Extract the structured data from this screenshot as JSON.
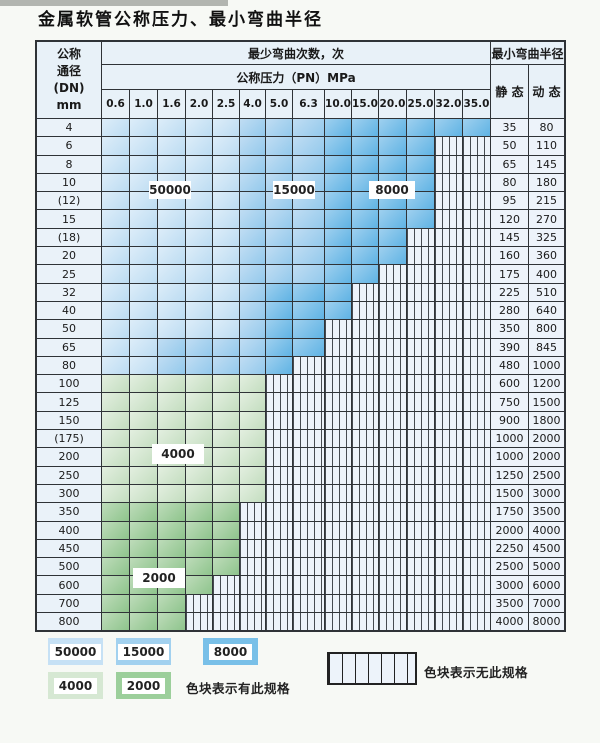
{
  "title": "金属软管公称压力、最小弯曲半径",
  "table": {
    "header": {
      "dn_lines": [
        "公称",
        "通径",
        "(DN)",
        "mm"
      ],
      "bend_cycles": "最少弯曲次数，次",
      "pressure": "公称压力（PN）MPa",
      "radius": "最小弯曲半径",
      "static": "静 态",
      "dynamic": "动 态",
      "pressure_columns": [
        "0.6",
        "1.0",
        "1.6",
        "2.0",
        "2.5",
        "4.0",
        "5.0",
        "6.3",
        "10.0",
        "15.0",
        "20.0",
        "25.0",
        "32.0",
        "35.0"
      ]
    },
    "cell_codes": {
      "L": "50000 cycles (light blue)",
      "M": "15000 cycles (medium blue)",
      "D": "8000 cycles (dark blue)",
      "G4": "4000 cycles (light green)",
      "G2": "2000 cycles (medium green)",
      "N": "no such specification (hatched)"
    },
    "rows": [
      {
        "dn": "4",
        "cells": [
          "L",
          "L",
          "L",
          "L",
          "L",
          "M",
          "M",
          "M",
          "D",
          "D",
          "D",
          "D",
          "D",
          "D"
        ],
        "static": "35",
        "dynamic": "80"
      },
      {
        "dn": "6",
        "cells": [
          "L",
          "L",
          "L",
          "L",
          "L",
          "M",
          "M",
          "M",
          "D",
          "D",
          "D",
          "D",
          "N",
          "N"
        ],
        "static": "50",
        "dynamic": "110"
      },
      {
        "dn": "8",
        "cells": [
          "L",
          "L",
          "L",
          "L",
          "L",
          "M",
          "M",
          "M",
          "D",
          "D",
          "D",
          "D",
          "N",
          "N"
        ],
        "static": "65",
        "dynamic": "145"
      },
      {
        "dn": "10",
        "cells": [
          "L",
          "L",
          "L",
          "L",
          "L",
          "M",
          "M",
          "M",
          "D",
          "D",
          "D",
          "D",
          "N",
          "N"
        ],
        "static": "80",
        "dynamic": "180"
      },
      {
        "dn": "(12)",
        "cells": [
          "L",
          "L",
          "L",
          "L",
          "L",
          "M",
          "M",
          "M",
          "D",
          "D",
          "D",
          "D",
          "N",
          "N"
        ],
        "static": "95",
        "dynamic": "215"
      },
      {
        "dn": "15",
        "cells": [
          "L",
          "L",
          "L",
          "L",
          "L",
          "M",
          "M",
          "M",
          "D",
          "D",
          "D",
          "D",
          "N",
          "N"
        ],
        "static": "120",
        "dynamic": "270"
      },
      {
        "dn": "(18)",
        "cells": [
          "L",
          "L",
          "L",
          "L",
          "L",
          "M",
          "M",
          "M",
          "D",
          "D",
          "D",
          "N",
          "N",
          "N"
        ],
        "static": "145",
        "dynamic": "325"
      },
      {
        "dn": "20",
        "cells": [
          "L",
          "L",
          "L",
          "L",
          "L",
          "M",
          "M",
          "M",
          "D",
          "D",
          "D",
          "N",
          "N",
          "N"
        ],
        "static": "160",
        "dynamic": "360"
      },
      {
        "dn": "25",
        "cells": [
          "L",
          "L",
          "L",
          "L",
          "L",
          "M",
          "M",
          "M",
          "D",
          "D",
          "N",
          "N",
          "N",
          "N"
        ],
        "static": "175",
        "dynamic": "400"
      },
      {
        "dn": "32",
        "cells": [
          "L",
          "L",
          "L",
          "L",
          "L",
          "M",
          "D",
          "D",
          "D",
          "N",
          "N",
          "N",
          "N",
          "N"
        ],
        "static": "225",
        "dynamic": "510"
      },
      {
        "dn": "40",
        "cells": [
          "L",
          "L",
          "L",
          "L",
          "L",
          "M",
          "D",
          "D",
          "D",
          "N",
          "N",
          "N",
          "N",
          "N"
        ],
        "static": "280",
        "dynamic": "640"
      },
      {
        "dn": "50",
        "cells": [
          "L",
          "L",
          "L",
          "L",
          "L",
          "M",
          "D",
          "D",
          "N",
          "N",
          "N",
          "N",
          "N",
          "N"
        ],
        "static": "350",
        "dynamic": "800"
      },
      {
        "dn": "65",
        "cells": [
          "L",
          "L",
          "M",
          "M",
          "M",
          "M",
          "D",
          "D",
          "N",
          "N",
          "N",
          "N",
          "N",
          "N"
        ],
        "static": "390",
        "dynamic": "845"
      },
      {
        "dn": "80",
        "cells": [
          "L",
          "L",
          "M",
          "M",
          "M",
          "M",
          "D",
          "N",
          "N",
          "N",
          "N",
          "N",
          "N",
          "N"
        ],
        "static": "480",
        "dynamic": "1000"
      },
      {
        "dn": "100",
        "cells": [
          "G4",
          "G4",
          "G4",
          "G4",
          "G4",
          "G4",
          "N",
          "N",
          "N",
          "N",
          "N",
          "N",
          "N",
          "N"
        ],
        "static": "600",
        "dynamic": "1200"
      },
      {
        "dn": "125",
        "cells": [
          "G4",
          "G4",
          "G4",
          "G4",
          "G4",
          "G4",
          "N",
          "N",
          "N",
          "N",
          "N",
          "N",
          "N",
          "N"
        ],
        "static": "750",
        "dynamic": "1500"
      },
      {
        "dn": "150",
        "cells": [
          "G4",
          "G4",
          "G4",
          "G4",
          "G4",
          "G4",
          "N",
          "N",
          "N",
          "N",
          "N",
          "N",
          "N",
          "N"
        ],
        "static": "900",
        "dynamic": "1800"
      },
      {
        "dn": "(175)",
        "cells": [
          "G4",
          "G4",
          "G4",
          "G4",
          "G4",
          "G4",
          "N",
          "N",
          "N",
          "N",
          "N",
          "N",
          "N",
          "N"
        ],
        "static": "1000",
        "dynamic": "2000"
      },
      {
        "dn": "200",
        "cells": [
          "G4",
          "G4",
          "G4",
          "G4",
          "G4",
          "G4",
          "N",
          "N",
          "N",
          "N",
          "N",
          "N",
          "N",
          "N"
        ],
        "static": "1000",
        "dynamic": "2000"
      },
      {
        "dn": "250",
        "cells": [
          "G4",
          "G4",
          "G4",
          "G4",
          "G4",
          "G4",
          "N",
          "N",
          "N",
          "N",
          "N",
          "N",
          "N",
          "N"
        ],
        "static": "1250",
        "dynamic": "2500"
      },
      {
        "dn": "300",
        "cells": [
          "G4",
          "G4",
          "G4",
          "G4",
          "G4",
          "G4",
          "N",
          "N",
          "N",
          "N",
          "N",
          "N",
          "N",
          "N"
        ],
        "static": "1500",
        "dynamic": "3000"
      },
      {
        "dn": "350",
        "cells": [
          "G2",
          "G2",
          "G2",
          "G2",
          "G2",
          "N",
          "N",
          "N",
          "N",
          "N",
          "N",
          "N",
          "N",
          "N"
        ],
        "static": "1750",
        "dynamic": "3500"
      },
      {
        "dn": "400",
        "cells": [
          "G2",
          "G2",
          "G2",
          "G2",
          "G2",
          "N",
          "N",
          "N",
          "N",
          "N",
          "N",
          "N",
          "N",
          "N"
        ],
        "static": "2000",
        "dynamic": "4000"
      },
      {
        "dn": "450",
        "cells": [
          "G2",
          "G2",
          "G2",
          "G2",
          "G2",
          "N",
          "N",
          "N",
          "N",
          "N",
          "N",
          "N",
          "N",
          "N"
        ],
        "static": "2250",
        "dynamic": "4500"
      },
      {
        "dn": "500",
        "cells": [
          "G2",
          "G2",
          "G2",
          "G2",
          "G2",
          "N",
          "N",
          "N",
          "N",
          "N",
          "N",
          "N",
          "N",
          "N"
        ],
        "static": "2500",
        "dynamic": "5000"
      },
      {
        "dn": "600",
        "cells": [
          "G2",
          "G2",
          "G2",
          "G2",
          "N",
          "N",
          "N",
          "N",
          "N",
          "N",
          "N",
          "N",
          "N",
          "N"
        ],
        "static": "3000",
        "dynamic": "6000"
      },
      {
        "dn": "700",
        "cells": [
          "G2",
          "G2",
          "G2",
          "N",
          "N",
          "N",
          "N",
          "N",
          "N",
          "N",
          "N",
          "N",
          "N",
          "N"
        ],
        "static": "3500",
        "dynamic": "7000"
      },
      {
        "dn": "800",
        "cells": [
          "G2",
          "G2",
          "G2",
          "N",
          "N",
          "N",
          "N",
          "N",
          "N",
          "N",
          "N",
          "N",
          "N",
          "N"
        ],
        "static": "4000",
        "dynamic": "8000"
      }
    ]
  },
  "overlays": [
    {
      "label": "50000"
    },
    {
      "label": "15000"
    },
    {
      "label": "8000"
    },
    {
      "label": "4000"
    },
    {
      "label": "2000"
    }
  ],
  "legend": {
    "items": [
      {
        "code": "L",
        "label": "50000"
      },
      {
        "code": "M",
        "label": "15000"
      },
      {
        "code": "D",
        "label": "8000"
      },
      {
        "code": "G4",
        "label": "4000"
      },
      {
        "code": "G2",
        "label": "2000"
      }
    ],
    "has_text": "色块表示有此规格",
    "none_text": "色块表示无此规格"
  },
  "colors": {
    "blue_50000": "#bcdcf2",
    "blue_15000": "#93c9ec",
    "blue_8000": "#5fb3e4",
    "green_4000": "#c3ddbf",
    "green_2000": "#8ec48c",
    "grid_line": "#2f3337",
    "header_bg": "#e8f1f8",
    "hatch_bg": "#edf3fa"
  }
}
